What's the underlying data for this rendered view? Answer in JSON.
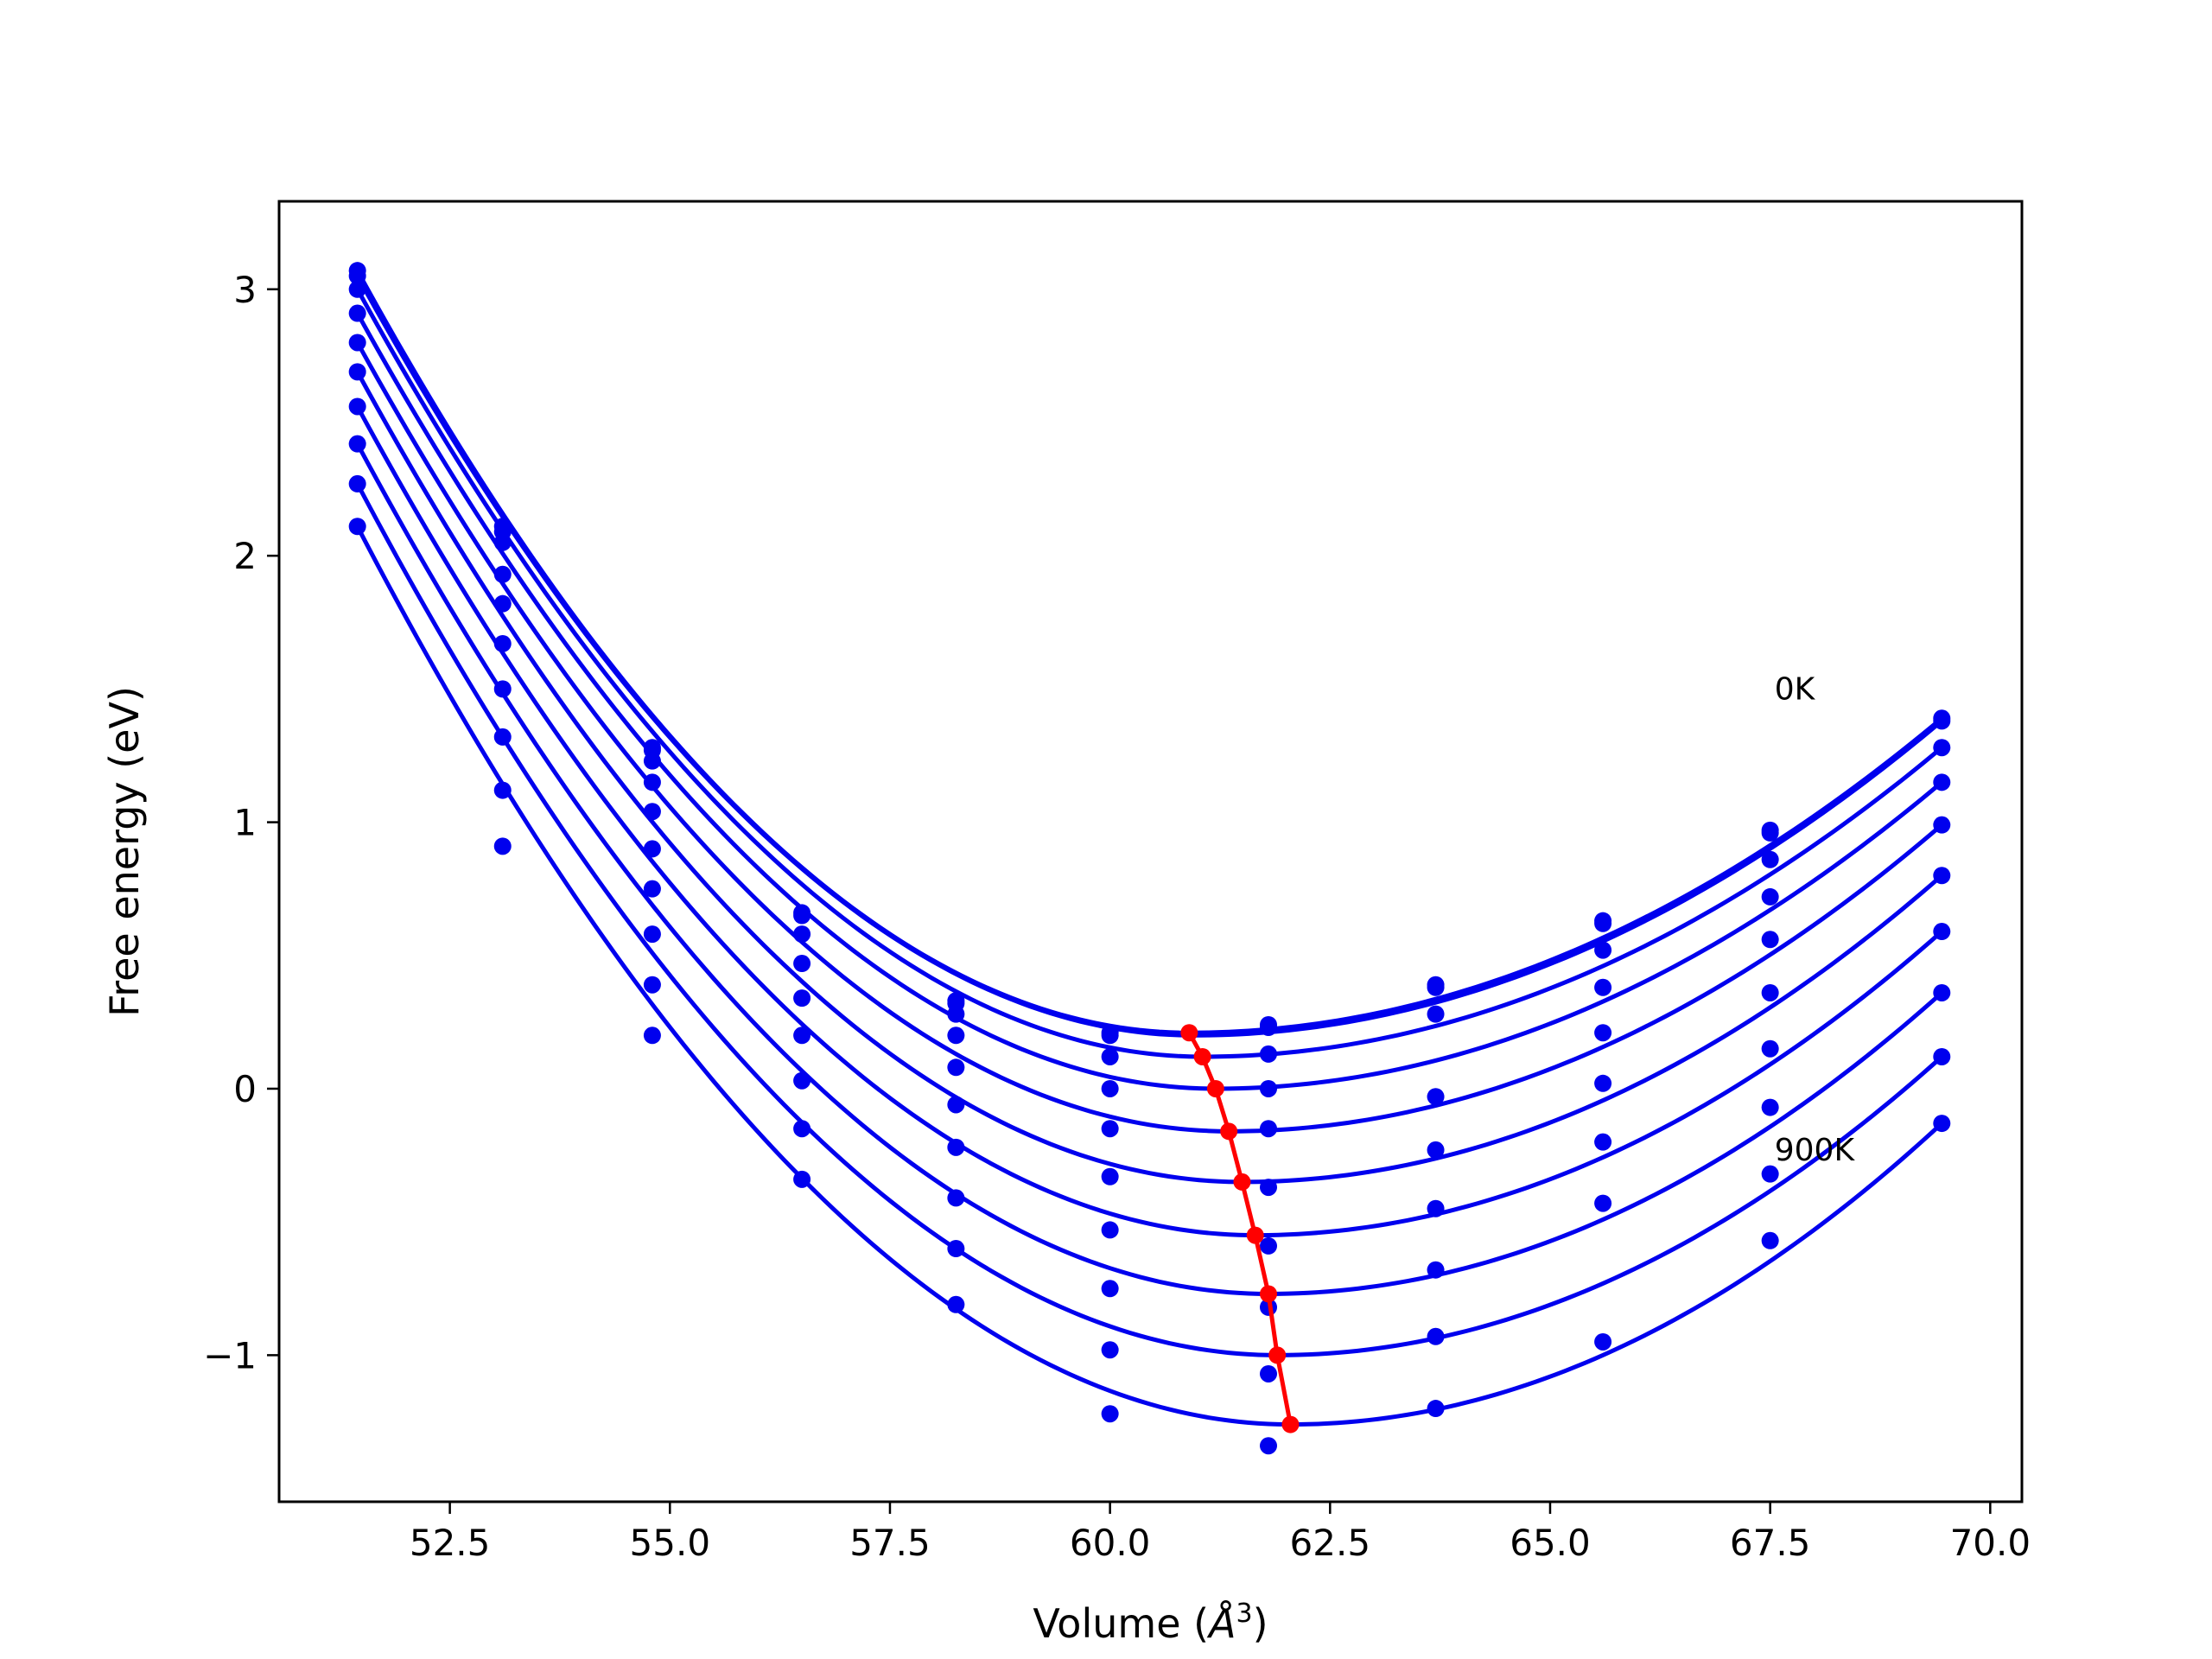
{
  "chart_data": {
    "type": "line",
    "xlabel_prefix": "Volume (",
    "xlabel_unit": "Å",
    "xlabel_exp": "3",
    "xlabel_suffix": ")",
    "ylabel": "Free energy (eV)",
    "xlim": [
      50.56,
      70.36
    ],
    "ylim": [
      -1.55,
      3.33
    ],
    "xticks": [
      52.5,
      55.0,
      57.5,
      60.0,
      62.5,
      65.0,
      67.5,
      70.0
    ],
    "xtick_labels": [
      "52.5",
      "55.0",
      "57.5",
      "60.0",
      "62.5",
      "65.0",
      "67.5",
      "70.0"
    ],
    "yticks": [
      -1,
      0,
      1,
      2,
      3
    ],
    "ytick_labels": [
      "−1",
      "0",
      "1",
      "2",
      "3"
    ],
    "grid": false,
    "annotations": [
      {
        "text": "0K",
        "x": 67.55,
        "y": 1.46
      },
      {
        "text": "900K",
        "x": 67.55,
        "y": -0.27
      }
    ],
    "colors": {
      "fit_curves": "#0000ee",
      "data_points": "#0000ee",
      "equilibrium": "#ff0000"
    },
    "volumes": [
      51.45,
      53.1,
      54.8,
      56.5,
      58.25,
      60.0,
      61.8,
      63.7,
      65.6,
      67.5,
      69.45
    ],
    "series": [
      {
        "min_v": 60.9,
        "min_f": 0.21,
        "points": [
          3.07,
          2.11,
          1.28,
          0.66,
          0.33,
          0.21,
          0.24,
          0.39,
          0.63,
          0.97,
          1.39
        ]
      },
      {
        "min_v": 60.95,
        "min_f": 0.2,
        "points": [
          3.05,
          2.09,
          1.27,
          0.65,
          0.32,
          0.2,
          0.23,
          0.38,
          0.62,
          0.96,
          1.38
        ]
      },
      {
        "min_v": 61.05,
        "min_f": 0.12,
        "points": [
          3.0,
          2.05,
          1.23,
          0.58,
          0.28,
          0.12,
          0.13,
          0.28,
          0.52,
          0.86,
          1.28
        ]
      },
      {
        "min_v": 61.2,
        "min_f": 0.0,
        "points": [
          2.91,
          1.93,
          1.15,
          0.47,
          0.2,
          0.0,
          0.0,
          -0.03,
          0.38,
          0.72,
          1.15
        ]
      },
      {
        "min_v": 61.35,
        "min_f": -0.16,
        "points": [
          2.8,
          1.82,
          1.04,
          0.34,
          0.08,
          -0.15,
          -0.15,
          -0.23,
          0.21,
          0.56,
          0.99
        ]
      },
      {
        "min_v": 61.5,
        "min_f": -0.35,
        "points": [
          2.69,
          1.67,
          0.9,
          0.2,
          -0.06,
          -0.33,
          -0.37,
          -0.45,
          0.02,
          0.36,
          0.8
        ]
      },
      {
        "min_v": 61.65,
        "min_f": -0.55,
        "points": [
          2.56,
          1.5,
          0.75,
          0.03,
          -0.22,
          -0.53,
          -0.59,
          -0.68,
          -0.2,
          0.15,
          0.59
        ]
      },
      {
        "min_v": 61.8,
        "min_f": -0.77,
        "points": [
          2.42,
          1.32,
          0.58,
          -0.15,
          -0.41,
          -0.75,
          -0.82,
          -0.93,
          -0.43,
          -0.07,
          0.36
        ]
      },
      {
        "min_v": 61.9,
        "min_f": -1.0,
        "points": [
          2.27,
          1.12,
          0.39,
          -0.34,
          -0.6,
          -0.98,
          -1.07,
          -1.2,
          -0.95,
          -0.32,
          0.12
        ]
      },
      {
        "min_v": 62.05,
        "min_f": -1.26,
        "points": [
          2.11,
          0.91,
          0.2,
          null,
          -0.81,
          -1.22,
          -1.34,
          null,
          null,
          -0.57,
          -0.13
        ]
      }
    ],
    "equilibrium_line": {
      "v": [
        60.9,
        61.05,
        61.2,
        61.35,
        61.5,
        61.65,
        61.8,
        61.9,
        62.05
      ],
      "f": [
        0.21,
        0.12,
        0.0,
        -0.16,
        -0.35,
        -0.55,
        -0.77,
        -1.0,
        -1.26
      ]
    }
  }
}
